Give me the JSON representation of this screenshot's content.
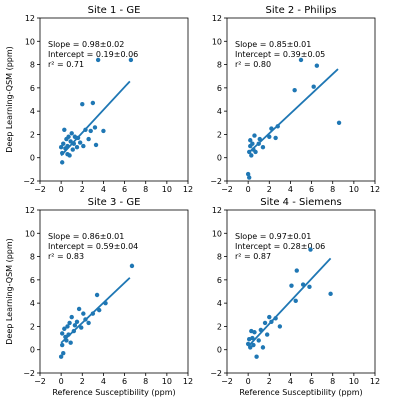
{
  "chart_data": [
    {
      "type": "scatter",
      "title": "Site 1 - GE",
      "xlabel": "",
      "ylabel": "Deep Learning-QSM (ppm)",
      "xlim": [
        -2,
        12
      ],
      "ylim": [
        -2,
        12
      ],
      "xticks": [
        "−2",
        "0",
        "2",
        "4",
        "6",
        "8",
        "10",
        "12"
      ],
      "yticks": [
        "−2",
        "0",
        "2",
        "4",
        "6",
        "8",
        "10",
        "12"
      ],
      "annotation": [
        "Slope = 0.98±0.02",
        "Intercept = 0.19±0.06",
        "r² = 0.71"
      ],
      "fit": {
        "slope": 0.98,
        "intercept": 0.19,
        "x_range": [
          0,
          6.5
        ]
      },
      "points": [
        [
          0.0,
          0.9
        ],
        [
          0.1,
          0.4
        ],
        [
          0.1,
          -0.4
        ],
        [
          0.2,
          1.2
        ],
        [
          0.3,
          2.4
        ],
        [
          0.4,
          0.8
        ],
        [
          0.5,
          1.6
        ],
        [
          0.6,
          1.0
        ],
        [
          0.6,
          0.3
        ],
        [
          0.7,
          1.8
        ],
        [
          0.8,
          0.2
        ],
        [
          0.9,
          1.4
        ],
        [
          1.0,
          2.1
        ],
        [
          1.1,
          0.7
        ],
        [
          1.2,
          1.2
        ],
        [
          1.3,
          1.8
        ],
        [
          1.5,
          0.9
        ],
        [
          1.6,
          1.7
        ],
        [
          1.8,
          1.3
        ],
        [
          2.0,
          4.6
        ],
        [
          2.1,
          1.0
        ],
        [
          2.3,
          2.4
        ],
        [
          2.6,
          1.6
        ],
        [
          2.8,
          2.3
        ],
        [
          3.0,
          4.7
        ],
        [
          3.2,
          2.6
        ],
        [
          3.3,
          1.1
        ],
        [
          3.5,
          8.4
        ],
        [
          4.0,
          2.3
        ],
        [
          6.6,
          8.4
        ]
      ]
    },
    {
      "type": "scatter",
      "title": "Site 2 - Philips",
      "xlabel": "",
      "ylabel": "",
      "xlim": [
        -2,
        12
      ],
      "ylim": [
        -2,
        12
      ],
      "xticks": [
        "−2",
        "0",
        "2",
        "4",
        "6",
        "8",
        "10",
        "12"
      ],
      "yticks": [
        "−2",
        "0",
        "2",
        "4",
        "6",
        "8",
        "10",
        "12"
      ],
      "annotation": [
        "Slope = 0.85±0.01",
        "Intercept = 0.39±0.05",
        "r² = 0.80"
      ],
      "fit": {
        "slope": 0.85,
        "intercept": 0.39,
        "x_range": [
          0,
          8.5
        ]
      },
      "points": [
        [
          0.0,
          -1.4
        ],
        [
          0.1,
          -1.7
        ],
        [
          0.1,
          0.5
        ],
        [
          0.2,
          1.0
        ],
        [
          0.2,
          1.5
        ],
        [
          0.3,
          0.2
        ],
        [
          0.4,
          1.2
        ],
        [
          0.5,
          0.7
        ],
        [
          0.6,
          1.9
        ],
        [
          0.7,
          0.5
        ],
        [
          1.0,
          1.2
        ],
        [
          1.1,
          1.6
        ],
        [
          1.4,
          0.9
        ],
        [
          2.0,
          1.8
        ],
        [
          2.2,
          2.5
        ],
        [
          2.6,
          1.7
        ],
        [
          2.8,
          2.7
        ],
        [
          4.4,
          5.8
        ],
        [
          6.2,
          6.1
        ],
        [
          6.5,
          7.9
        ],
        [
          5.0,
          8.4
        ],
        [
          8.6,
          3.0
        ]
      ]
    },
    {
      "type": "scatter",
      "title": "Site 3 - GE",
      "xlabel": "Reference Susceptibility (ppm)",
      "ylabel": "Deep Learning-QSM (ppm)",
      "xlim": [
        -2,
        12
      ],
      "ylim": [
        -2,
        12
      ],
      "xticks": [
        "−2",
        "0",
        "2",
        "4",
        "6",
        "8",
        "10",
        "12"
      ],
      "yticks": [
        "−2",
        "0",
        "2",
        "4",
        "6",
        "8",
        "10",
        "12"
      ],
      "annotation": [
        "Slope = 0.86±0.01",
        "Intercept = 0.59±0.04",
        "r² = 0.83"
      ],
      "fit": {
        "slope": 0.86,
        "intercept": 0.59,
        "x_range": [
          0,
          6.5
        ]
      },
      "points": [
        [
          0.0,
          -0.6
        ],
        [
          0.1,
          0.4
        ],
        [
          0.1,
          1.4
        ],
        [
          0.2,
          -0.3
        ],
        [
          0.3,
          1.8
        ],
        [
          0.4,
          1.1
        ],
        [
          0.5,
          0.8
        ],
        [
          0.6,
          2.0
        ],
        [
          0.7,
          1.3
        ],
        [
          0.8,
          2.3
        ],
        [
          0.9,
          0.6
        ],
        [
          1.0,
          2.8
        ],
        [
          1.2,
          1.6
        ],
        [
          1.3,
          2.1
        ],
        [
          1.5,
          2.4
        ],
        [
          1.7,
          3.5
        ],
        [
          1.9,
          1.9
        ],
        [
          2.1,
          3.1
        ],
        [
          2.3,
          2.6
        ],
        [
          2.6,
          2.3
        ],
        [
          3.0,
          3.1
        ],
        [
          3.4,
          4.7
        ],
        [
          3.6,
          3.4
        ],
        [
          4.2,
          4.0
        ],
        [
          6.7,
          7.2
        ]
      ]
    },
    {
      "type": "scatter",
      "title": "Site 4 - Siemens",
      "xlabel": "Reference Susceptibility (ppm)",
      "ylabel": "",
      "xlim": [
        -2,
        12
      ],
      "ylim": [
        -2,
        12
      ],
      "xticks": [
        "−2",
        "0",
        "2",
        "4",
        "6",
        "8",
        "10",
        "12"
      ],
      "yticks": [
        "−2",
        "0",
        "2",
        "4",
        "6",
        "8",
        "10",
        "12"
      ],
      "annotation": [
        "Slope = 0.97±0.01",
        "Intercept = 0.28±0.06",
        "r² = 0.87"
      ],
      "fit": {
        "slope": 0.97,
        "intercept": 0.28,
        "x_range": [
          0,
          7.8
        ]
      },
      "points": [
        [
          0.0,
          0.5
        ],
        [
          0.1,
          0.9
        ],
        [
          0.2,
          0.2
        ],
        [
          0.3,
          1.6
        ],
        [
          0.4,
          1.0
        ],
        [
          0.5,
          0.4
        ],
        [
          0.6,
          1.5
        ],
        [
          0.8,
          -0.6
        ],
        [
          1.0,
          0.8
        ],
        [
          1.2,
          1.7
        ],
        [
          1.4,
          0.2
        ],
        [
          1.6,
          2.3
        ],
        [
          1.8,
          1.3
        ],
        [
          2.0,
          2.8
        ],
        [
          2.2,
          2.4
        ],
        [
          2.6,
          2.7
        ],
        [
          3.0,
          2.0
        ],
        [
          4.1,
          5.5
        ],
        [
          4.5,
          4.2
        ],
        [
          4.6,
          6.8
        ],
        [
          5.2,
          5.6
        ],
        [
          5.8,
          5.4
        ],
        [
          5.9,
          8.6
        ],
        [
          7.8,
          4.8
        ]
      ]
    }
  ]
}
